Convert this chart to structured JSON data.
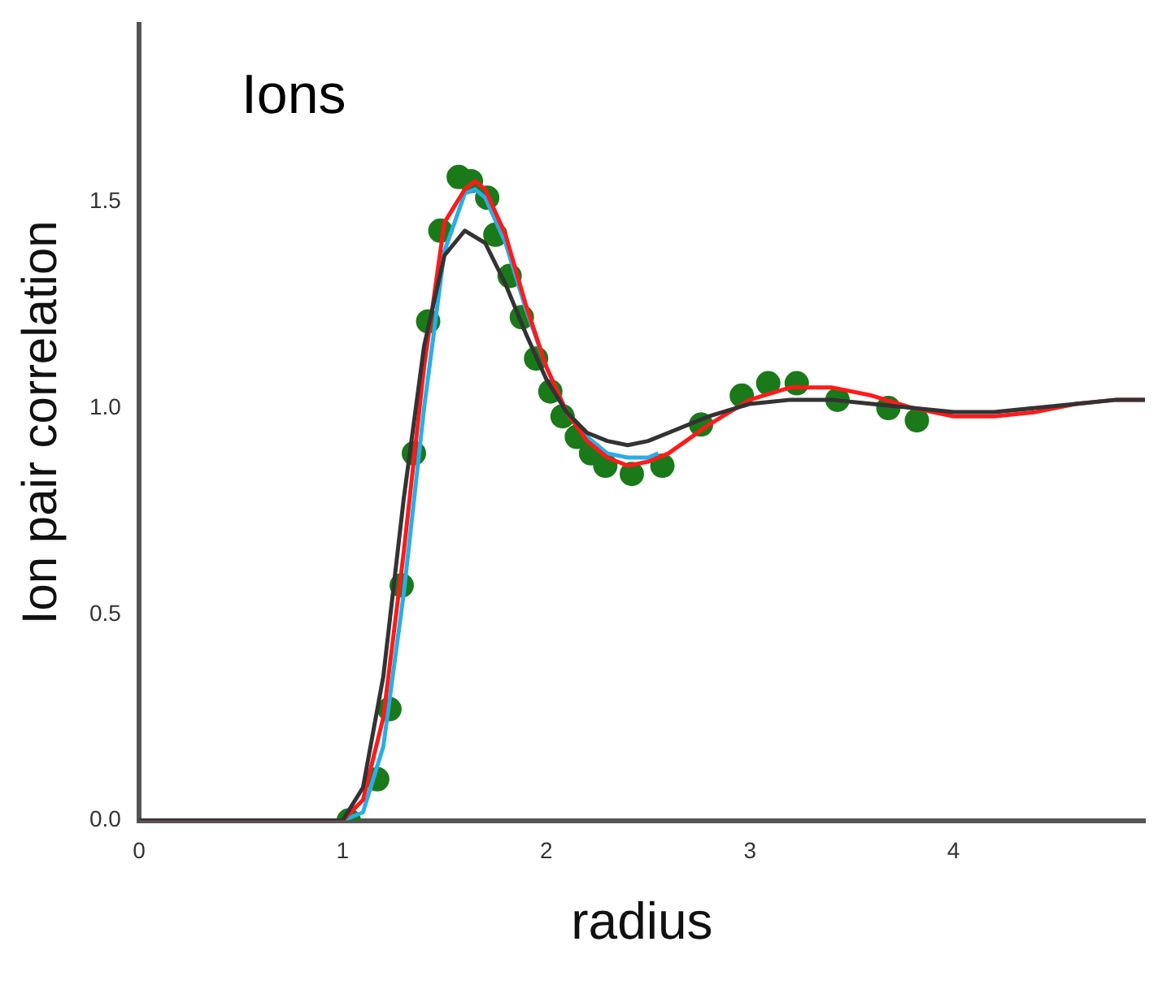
{
  "chart_data": {
    "type": "line",
    "title": "Ions",
    "xlabel": "radius",
    "ylabel": "Ion pair correlation",
    "xlim": [
      0,
      4.94
    ],
    "ylim": [
      0,
      1.93
    ],
    "xticks": [
      0,
      1,
      2,
      3,
      4
    ],
    "yticks": [
      {
        "value": 0,
        "label": "0.0"
      },
      {
        "value": 0.5,
        "label": "0.5"
      },
      {
        "value": 1,
        "label": "1.0"
      },
      {
        "value": 1.5,
        "label": "1.5"
      }
    ],
    "grid": false,
    "legend": false,
    "series": [
      {
        "color": "#333333",
        "x": [
          0,
          1.0,
          1.1,
          1.2,
          1.3,
          1.4,
          1.5,
          1.6,
          1.7,
          1.8,
          1.9,
          2.0,
          2.1,
          2.2,
          2.3,
          2.4,
          2.5,
          2.6,
          2.8,
          3.0,
          3.2,
          3.4,
          3.6,
          3.8,
          4.0,
          4.2,
          4.4,
          4.6,
          4.8,
          4.94
        ],
        "values": [
          0,
          0,
          0.08,
          0.35,
          0.78,
          1.15,
          1.37,
          1.43,
          1.4,
          1.3,
          1.18,
          1.07,
          0.99,
          0.94,
          0.92,
          0.91,
          0.92,
          0.94,
          0.98,
          1.01,
          1.02,
          1.02,
          1.01,
          1.0,
          0.99,
          0.99,
          1.0,
          1.01,
          1.02,
          1.02
        ]
      },
      {
        "color": "#ff1a1a",
        "x": [
          0,
          1.0,
          1.1,
          1.2,
          1.3,
          1.4,
          1.5,
          1.6,
          1.65,
          1.7,
          1.8,
          1.9,
          2.0,
          2.1,
          2.2,
          2.3,
          2.4,
          2.5,
          2.6,
          2.8,
          3.0,
          3.2,
          3.4,
          3.6,
          3.8,
          4.0,
          4.2,
          4.4,
          4.6,
          4.8,
          4.94
        ],
        "values": [
          0,
          0,
          0.05,
          0.25,
          0.65,
          1.1,
          1.45,
          1.53,
          1.55,
          1.53,
          1.42,
          1.25,
          1.1,
          0.99,
          0.92,
          0.88,
          0.86,
          0.87,
          0.89,
          0.96,
          1.02,
          1.05,
          1.05,
          1.03,
          1.0,
          0.98,
          0.98,
          0.99,
          1.01,
          1.02,
          1.02
        ]
      },
      {
        "color": "#29aee6",
        "x": [
          0,
          1.0,
          1.1,
          1.2,
          1.3,
          1.4,
          1.5,
          1.6,
          1.65,
          1.7,
          1.8,
          1.9,
          2.0,
          2.1,
          2.2,
          2.3,
          2.4,
          2.5,
          2.55
        ],
        "values": [
          0,
          0,
          0.02,
          0.18,
          0.55,
          1.0,
          1.38,
          1.52,
          1.53,
          1.51,
          1.4,
          1.24,
          1.1,
          0.99,
          0.93,
          0.89,
          0.88,
          0.88,
          0.89
        ]
      },
      {
        "type": "scatter",
        "color": "#1a7a1a",
        "marker": "circle",
        "x": [
          1.03,
          1.17,
          1.23,
          1.29,
          1.35,
          1.42,
          1.48,
          1.57,
          1.63,
          1.71,
          1.75,
          1.82,
          1.88,
          1.95,
          2.02,
          2.08,
          2.15,
          2.22,
          2.29,
          2.42,
          2.57,
          2.76,
          2.96,
          3.09,
          3.23,
          3.43,
          3.68,
          3.82
        ],
        "values": [
          0,
          0.1,
          0.27,
          0.57,
          0.89,
          1.21,
          1.43,
          1.56,
          1.55,
          1.51,
          1.42,
          1.32,
          1.22,
          1.12,
          1.04,
          0.98,
          0.93,
          0.89,
          0.86,
          0.84,
          0.86,
          0.96,
          1.03,
          1.06,
          1.06,
          1.02,
          1.0,
          0.97
        ]
      }
    ]
  }
}
